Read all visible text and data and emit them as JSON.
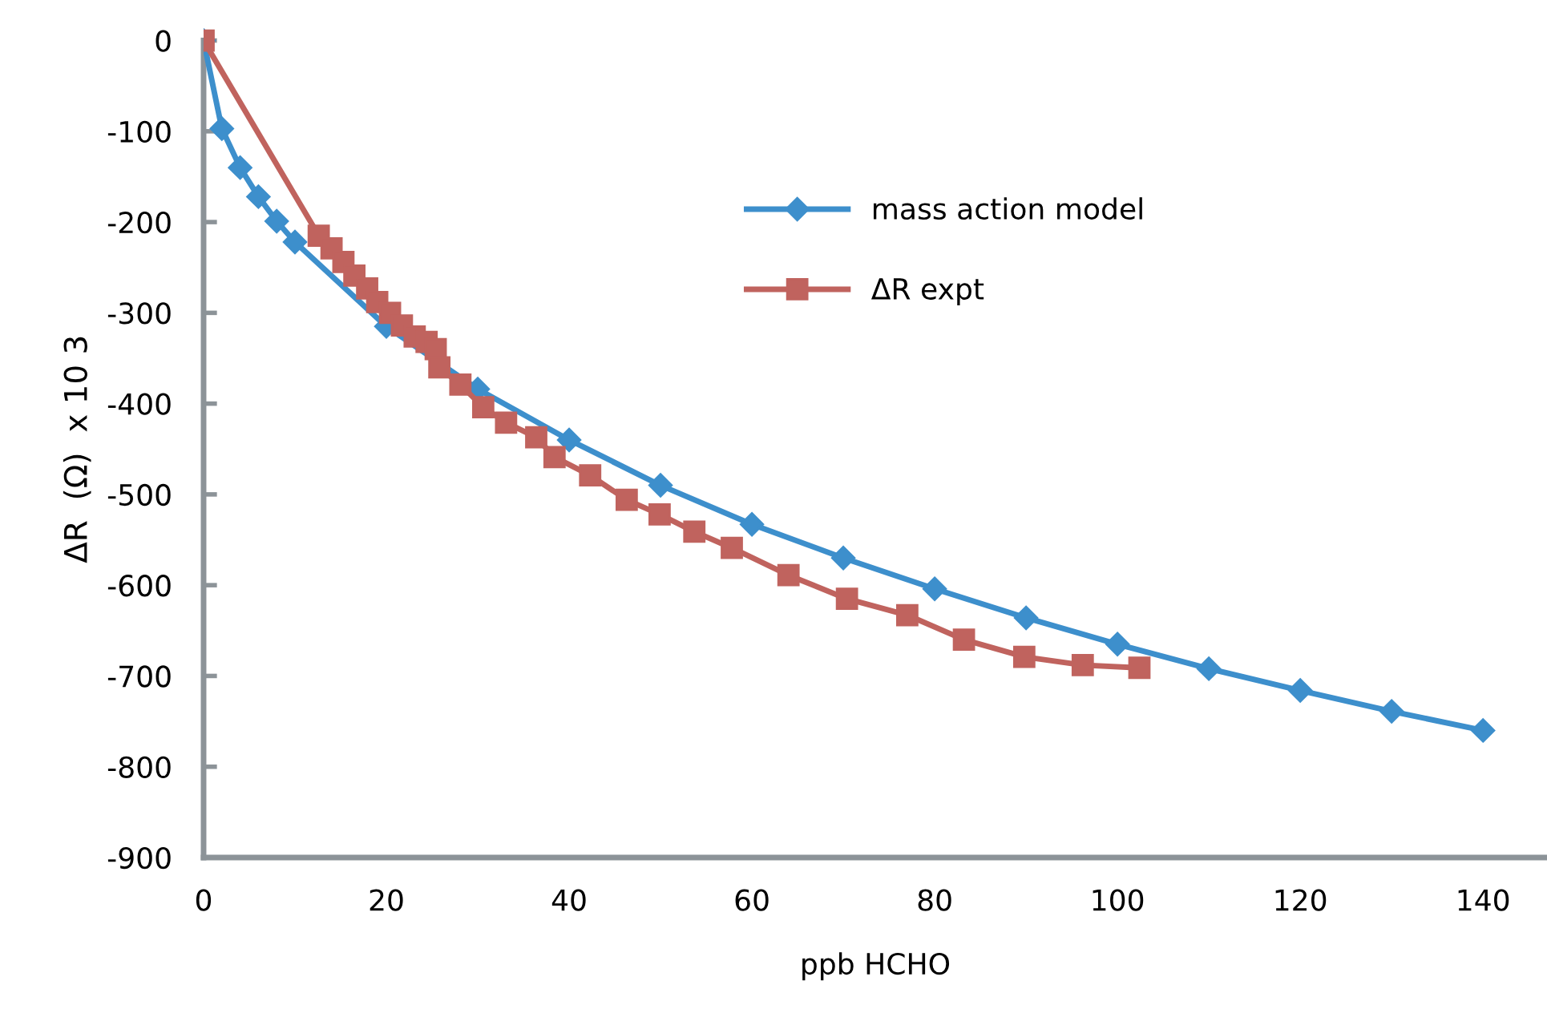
{
  "chart_data": {
    "type": "line",
    "xlabel": "ppb HCHO",
    "ylabel": "ΔR  (Ω)  x 10 3",
    "xlim": [
      0,
      147
    ],
    "xticks": [
      0,
      20,
      40,
      60,
      80,
      100,
      120,
      140
    ],
    "ylim": [
      -900,
      0
    ],
    "yticks": [
      0,
      -100,
      -200,
      -300,
      -400,
      -500,
      -600,
      -700,
      -800,
      -900
    ],
    "grid": false,
    "legend": "top right",
    "series": [
      {
        "name": "mass action model",
        "color": "#3d8fcc",
        "marker": "diamond",
        "x": [
          0,
          2,
          4,
          6,
          8,
          10,
          20,
          30,
          40,
          50,
          60,
          70,
          80,
          90,
          100,
          110,
          120,
          130,
          140
        ],
        "values": [
          0,
          -97,
          -140,
          -172,
          -199,
          -222,
          -315,
          -384,
          -440,
          -490,
          -533,
          -570,
          -604,
          -636,
          -665,
          -692,
          -716,
          -739,
          -760
        ]
      },
      {
        "name": "ΔR expt",
        "color": "#c0635e",
        "marker": "square",
        "x": [
          0,
          12.6,
          14.0,
          15.3,
          16.5,
          17.9,
          19.0,
          20.4,
          21.7,
          23.1,
          24.4,
          25.4,
          25.8,
          28.1,
          30.6,
          33.1,
          36.4,
          38.4,
          42.3,
          46.3,
          49.9,
          53.7,
          57.8,
          64,
          70.4,
          77,
          83.2,
          89.8,
          96.2,
          102.4
        ],
        "values": [
          0,
          -215,
          -229,
          -244,
          -259,
          -273,
          -288,
          -300,
          -314,
          -326,
          -332,
          -340,
          -360,
          -379,
          -404,
          -421,
          -437,
          -459,
          -479,
          -506,
          -522,
          -541,
          -559,
          -589,
          -615,
          -633,
          -660,
          -679,
          -688,
          -691
        ]
      }
    ]
  }
}
